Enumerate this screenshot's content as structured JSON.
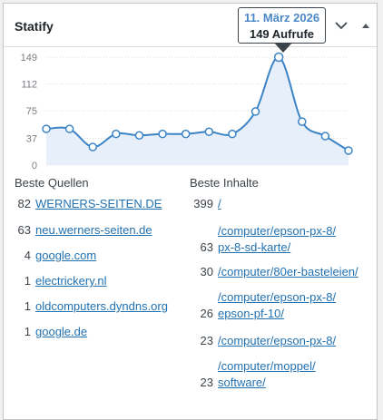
{
  "widget": {
    "title": "Statify"
  },
  "tooltip": {
    "date": "11. März 2026",
    "count": "149 Aufrufe"
  },
  "chart_data": {
    "type": "area",
    "y_ticks": [
      "149",
      "112",
      "75",
      "37",
      "0"
    ],
    "ylim": [
      0,
      149
    ],
    "values": [
      50,
      50,
      25,
      43,
      41,
      43,
      43,
      46,
      43,
      74,
      149,
      60,
      40,
      20
    ],
    "highlighted_point": 10,
    "line_color": "#3c84c6",
    "fill_color": "#e7f0fa"
  },
  "sources": {
    "title": "Beste Quellen",
    "items": [
      {
        "count": "82",
        "label": "WERNERS-SEITEN.DE"
      },
      {
        "count": "63",
        "label": "neu.werners-seiten.de"
      },
      {
        "count": "4",
        "label": "google.com"
      },
      {
        "count": "1",
        "label": "electrickery.nl"
      },
      {
        "count": "1",
        "label": "oldcomputers.dyndns.org"
      },
      {
        "count": "1",
        "label": "google.de"
      }
    ]
  },
  "contents": {
    "title": "Beste Inhalte",
    "items": [
      {
        "count": "399",
        "line1": "/",
        "line2": ""
      },
      {
        "count": "63",
        "line1": "/computer/epson-px-8/",
        "line2": "px-8-sd-karte/"
      },
      {
        "count": "30",
        "line1": "/computer/80er-basteleien/",
        "line2": ""
      },
      {
        "count": "26",
        "line1": "/computer/epson-px-8/",
        "line2": "epson-pf-10/"
      },
      {
        "count": "23",
        "line1": "/computer/epson-px-8/",
        "line2": ""
      },
      {
        "count": "23",
        "line1": "/computer/moppel/",
        "line2": "software/"
      }
    ]
  }
}
